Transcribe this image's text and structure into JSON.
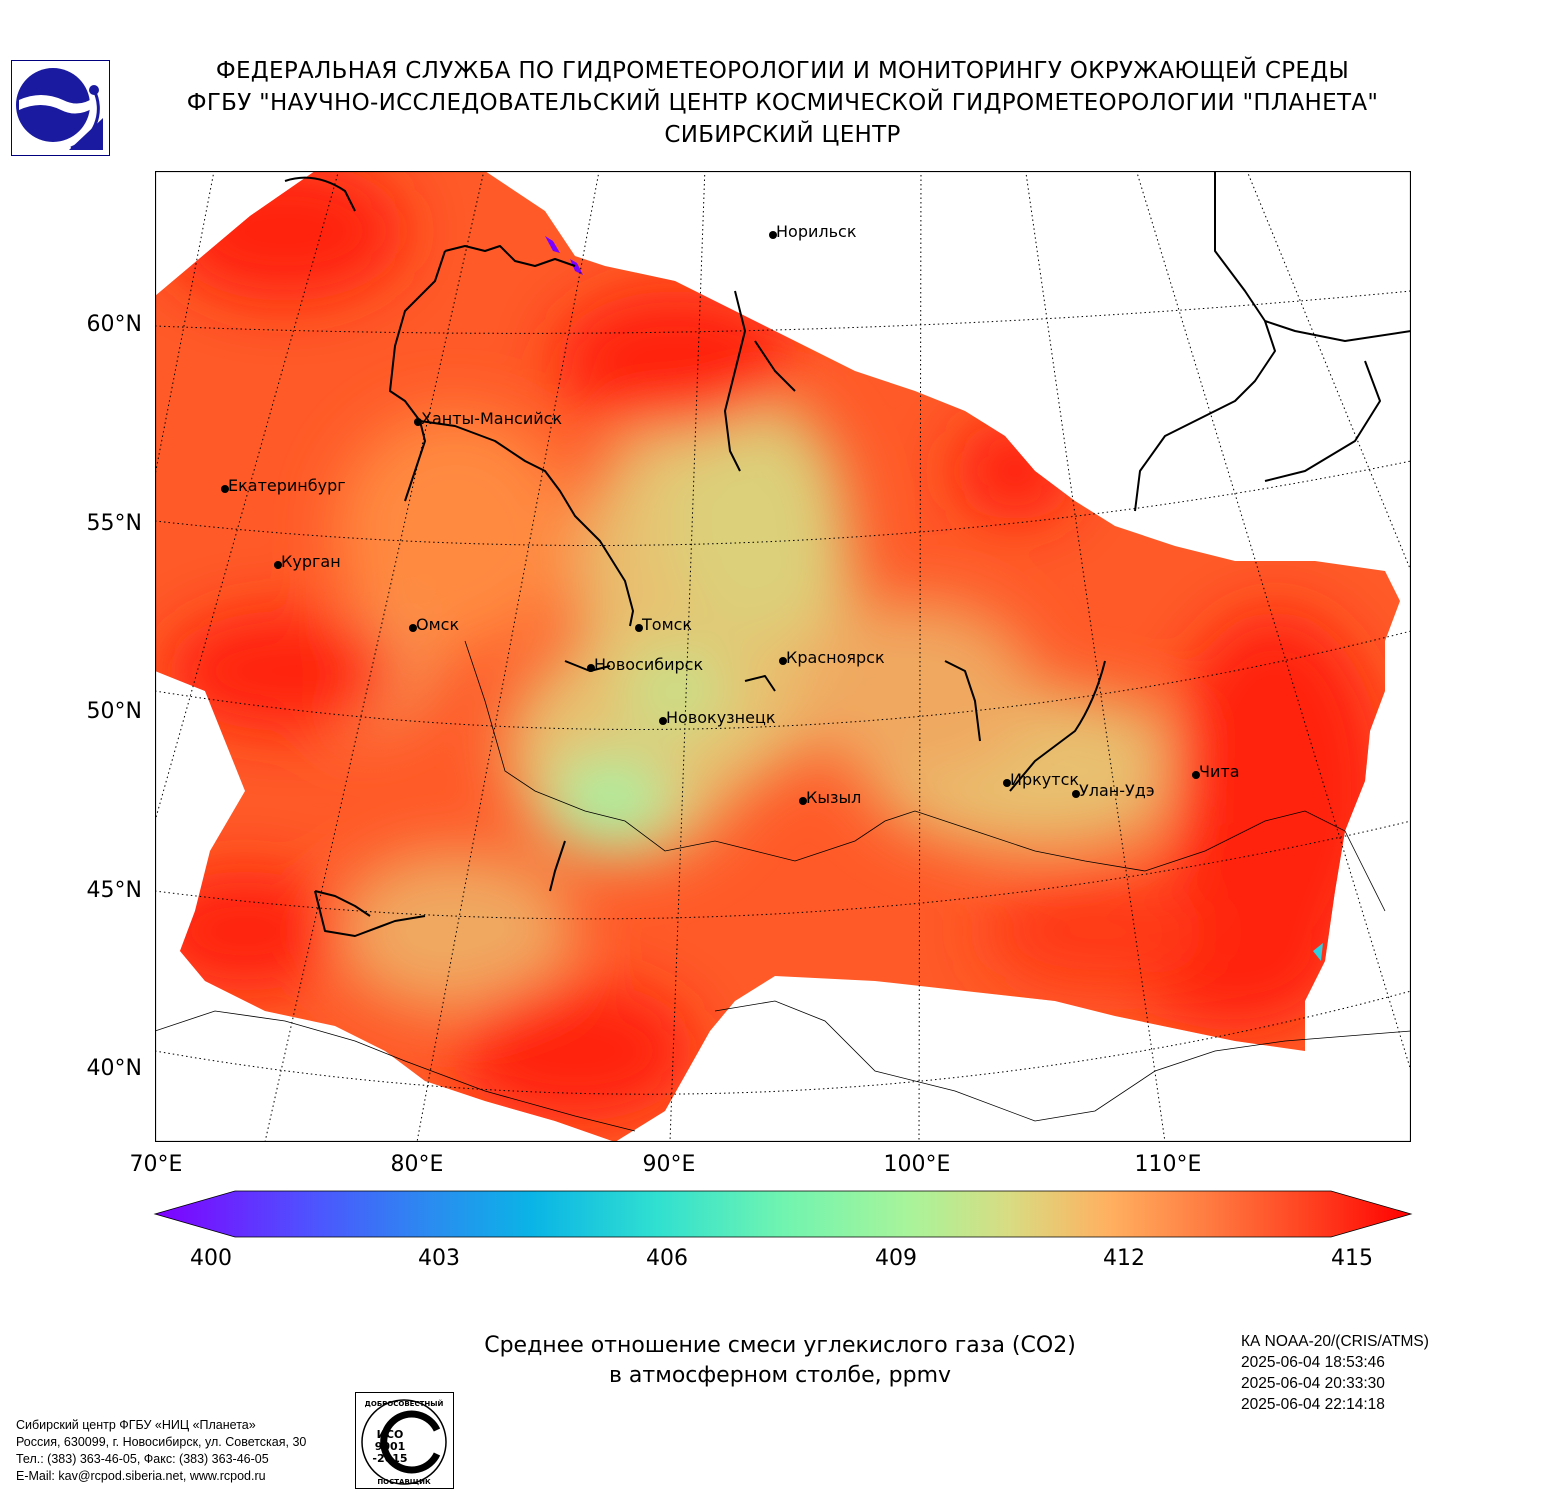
{
  "header": {
    "line1": "ФЕДЕРАЛЬНАЯ СЛУЖБА ПО ГИДРОМЕТЕОРОЛОГИИ И МОНИТОРИНГУ ОКРУЖАЮЩЕЙ СРЕДЫ",
    "line2": "ФГБУ \"НАУЧНО-ИССЛЕДОВАТЕЛЬСКИЙ ЦЕНТР КОСМИЧЕСКОЙ ГИДРОМЕТЕОРОЛОГИИ \"ПЛАНЕТА\"",
    "line3": "СИБИРСКИЙ ЦЕНТР"
  },
  "map": {
    "lat_labels": [
      "60°N",
      "55°N",
      "50°N",
      "45°N",
      "40°N"
    ],
    "lon_labels": [
      "70°E",
      "80°E",
      "90°E",
      "100°E",
      "110°E"
    ],
    "cities": [
      {
        "name": "Норильск"
      },
      {
        "name": "Ханты-Мансийск"
      },
      {
        "name": "Екатеринбург"
      },
      {
        "name": "Курган"
      },
      {
        "name": "Омск"
      },
      {
        "name": "Томск"
      },
      {
        "name": "Новосибирск"
      },
      {
        "name": "Красноярск"
      },
      {
        "name": "Новокузнецк"
      },
      {
        "name": "Кызыл"
      },
      {
        "name": "Иркутск"
      },
      {
        "name": "Улан-Удэ"
      },
      {
        "name": "Чита"
      }
    ],
    "colors": {
      "high": "#ff1a0a",
      "mid_high": "#ff5a28",
      "mid": "#ffa050",
      "low": "#d8dc82",
      "lowest": "#a8f0a0"
    }
  },
  "colorbar": {
    "min": 400,
    "max": 415,
    "ticks": [
      "400",
      "403",
      "406",
      "409",
      "412",
      "415"
    ]
  },
  "caption": {
    "line1": "Среднее отношение смеси углекислого газа (СО2)",
    "line2": "в атмосферном столбе, ppmv"
  },
  "satellite": {
    "name": "КА NOAA-20/(CRIS/ATMS)",
    "times": [
      "2025-06-04 18:53:46",
      "2025-06-04 20:33:30",
      "2025-06-04 22:14:18"
    ]
  },
  "organization": {
    "lines": [
      "Сибирский центр ФГБУ «НИЦ «Планета»",
      "Россия, 630099, г. Новосибирск, ул. Советская, 30",
      "Тел.: (383) 363-46-05, Факс: (383) 363-46-05",
      "E-Mail: kav@rcpod.siberia.net, www.rcpod.ru"
    ]
  },
  "iso_badge": {
    "top_text": "ДОБРОСОВЕСТНЫЙ",
    "line1": "ИСО",
    "line2": "9001",
    "line3": "-2015",
    "bottom_text": "ПОСТАВЩИК"
  }
}
